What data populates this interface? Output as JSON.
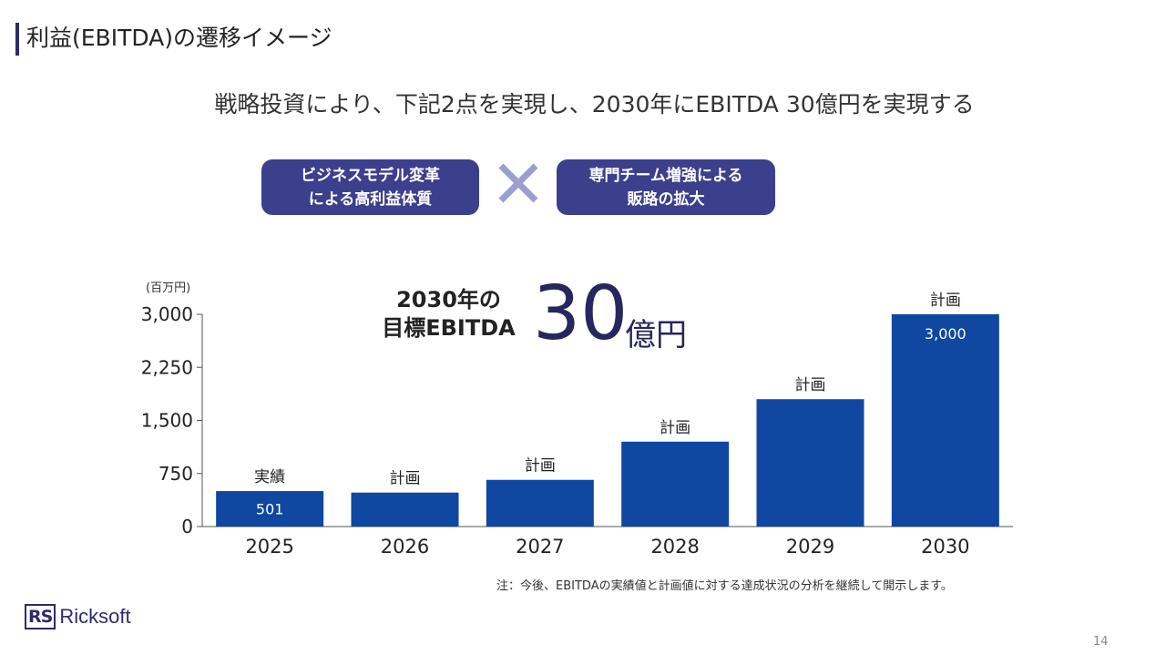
{
  "page": {
    "title": "利益(EBITDA)の遷移イメージ",
    "headline": "戦略投資により、下記2点を実現し、2030年にEBITDA 30億円を実現する",
    "pill_left": [
      "ビジネスモデル変革",
      "による高利益体質"
    ],
    "pill_right": [
      "専門チーム増強による",
      "販路の拡大"
    ],
    "times_icon": "times-icon",
    "unit_label": "(百万円)",
    "target_label": [
      "2030年の",
      "目標EBITDA"
    ],
    "target_value": "30",
    "target_unit": "億円",
    "note": "注：今後、EBITDAの実績値と計画値に対する達成状況の分析を継続して開示します。",
    "logo_mark": "RS",
    "logo_text": "Ricksoft",
    "page_number": "14"
  },
  "colors": {
    "bar": "#0f47a1",
    "pill": "#3b3f8c",
    "accent": "#27265e",
    "times": "#9b9fd0"
  },
  "chart_data": {
    "type": "bar",
    "title": "",
    "xlabel": "",
    "ylabel": "(百万円)",
    "categories": [
      "2025",
      "2026",
      "2027",
      "2028",
      "2029",
      "2030"
    ],
    "values": [
      501,
      480,
      660,
      1200,
      1800,
      3000
    ],
    "bar_tags": [
      "実績",
      "計画",
      "計画",
      "計画",
      "計画",
      "計画"
    ],
    "data_labels": [
      "501",
      "",
      "",
      "",
      "",
      "3,000"
    ],
    "yticks": [
      0,
      750,
      1500,
      2250,
      3000
    ],
    "ytick_labels": [
      "0",
      "750",
      "1,500",
      "2,250",
      "3,000"
    ],
    "ylim": [
      0,
      3000
    ],
    "grid": false
  }
}
